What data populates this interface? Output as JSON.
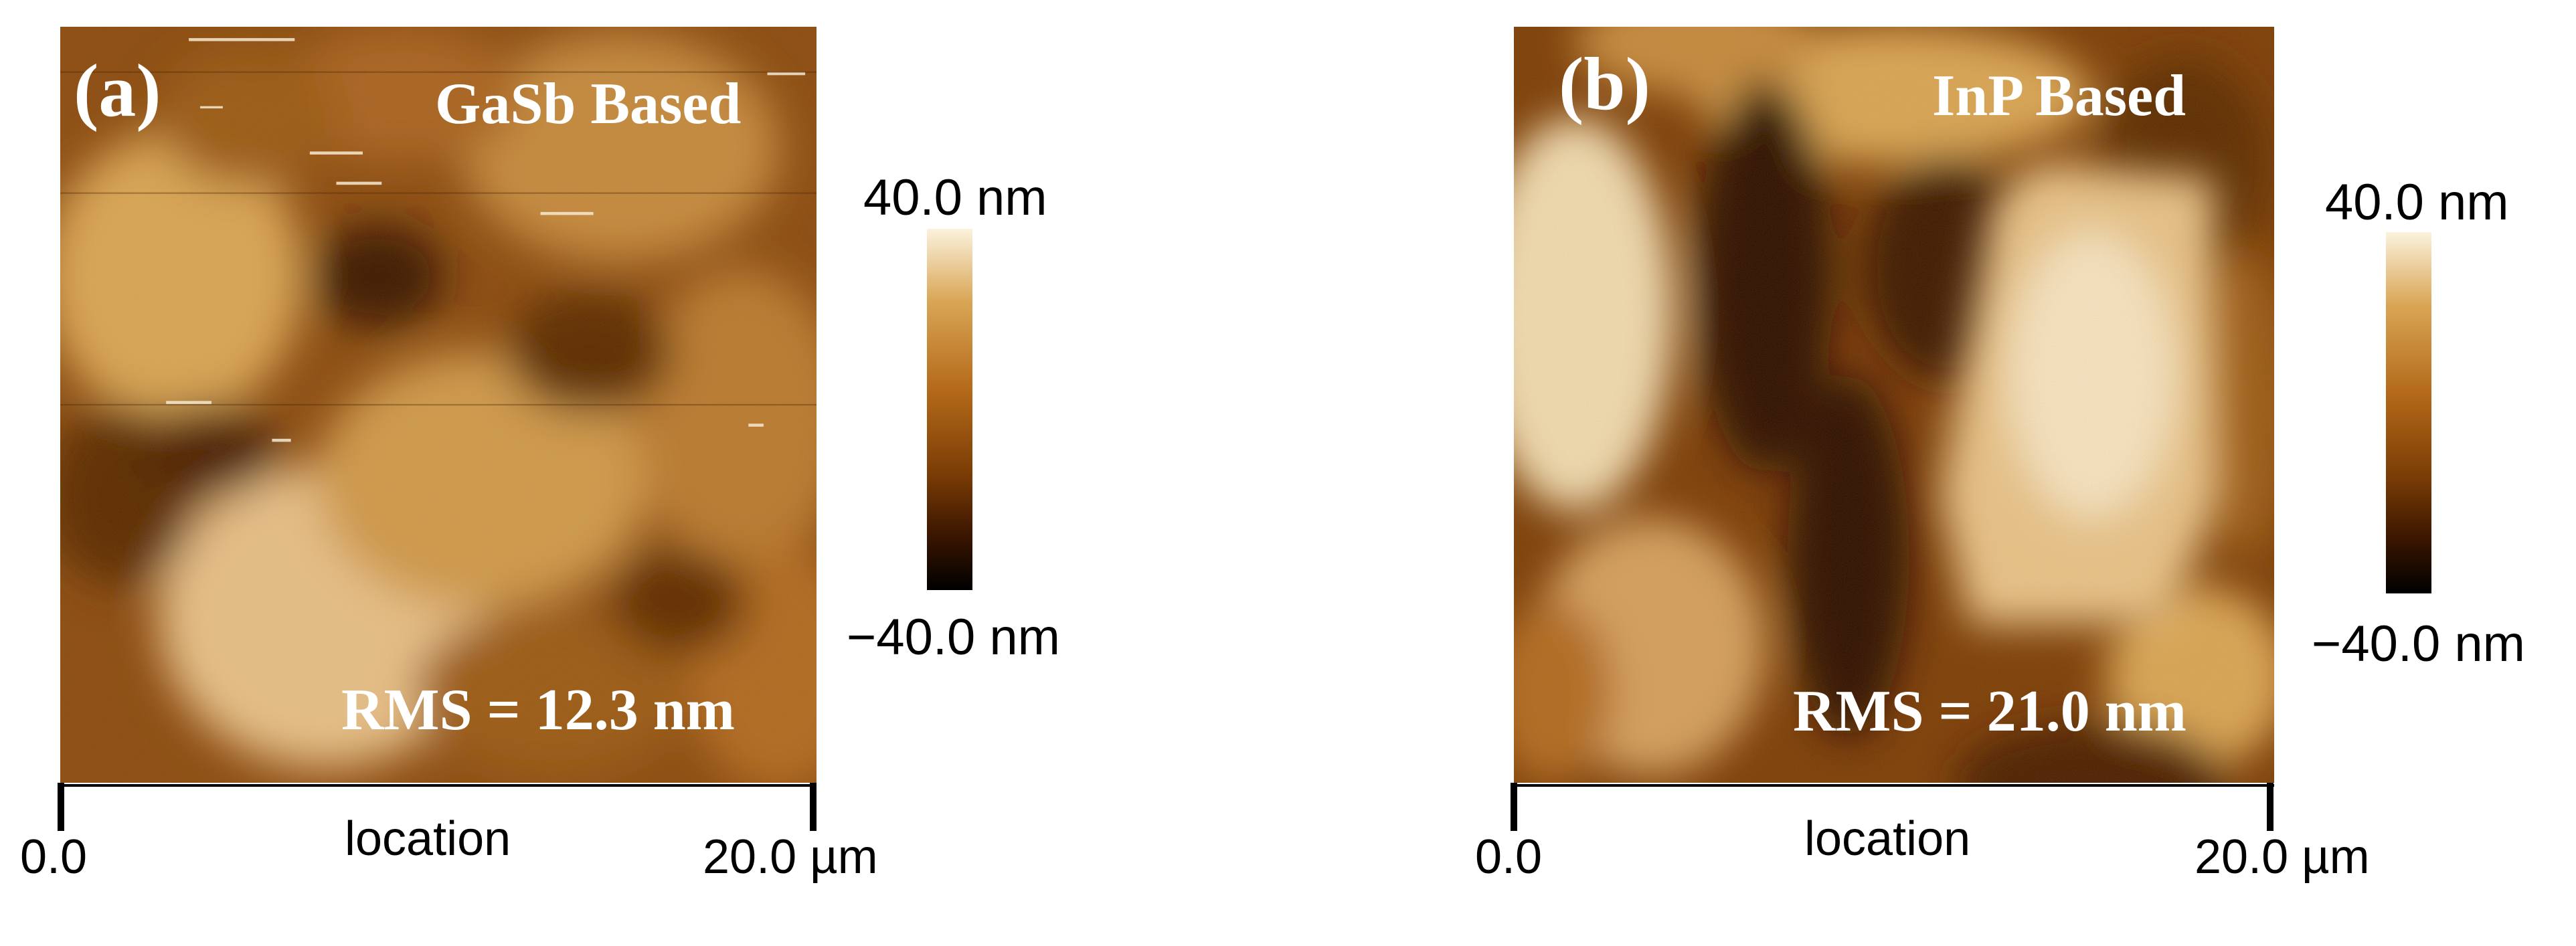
{
  "colors": {
    "afm_colormap": [
      "#000000",
      "#3a1500",
      "#7a3c06",
      "#b36918",
      "#d9a656",
      "#fbf2dd"
    ],
    "text_on_image": "#ffffff",
    "background": "#ffffff"
  },
  "panels": [
    {
      "panel_label": "(a)",
      "material": "GaSb Based",
      "rms": "RMS = 12.3 nm",
      "colorbar": {
        "max": "40.0 nm",
        "min": "−40.0 nm"
      },
      "x_axis": {
        "start": "0.0",
        "end": "20.0 µm",
        "label": "location"
      }
    },
    {
      "panel_label": "(b)",
      "material": "InP Based",
      "rms": "RMS = 21.0 nm",
      "colorbar": {
        "max": "40.0 nm",
        "min": "−40.0 nm"
      },
      "x_axis": {
        "start": "0.0",
        "end": "20.0 µm",
        "label": "location"
      }
    }
  ]
}
